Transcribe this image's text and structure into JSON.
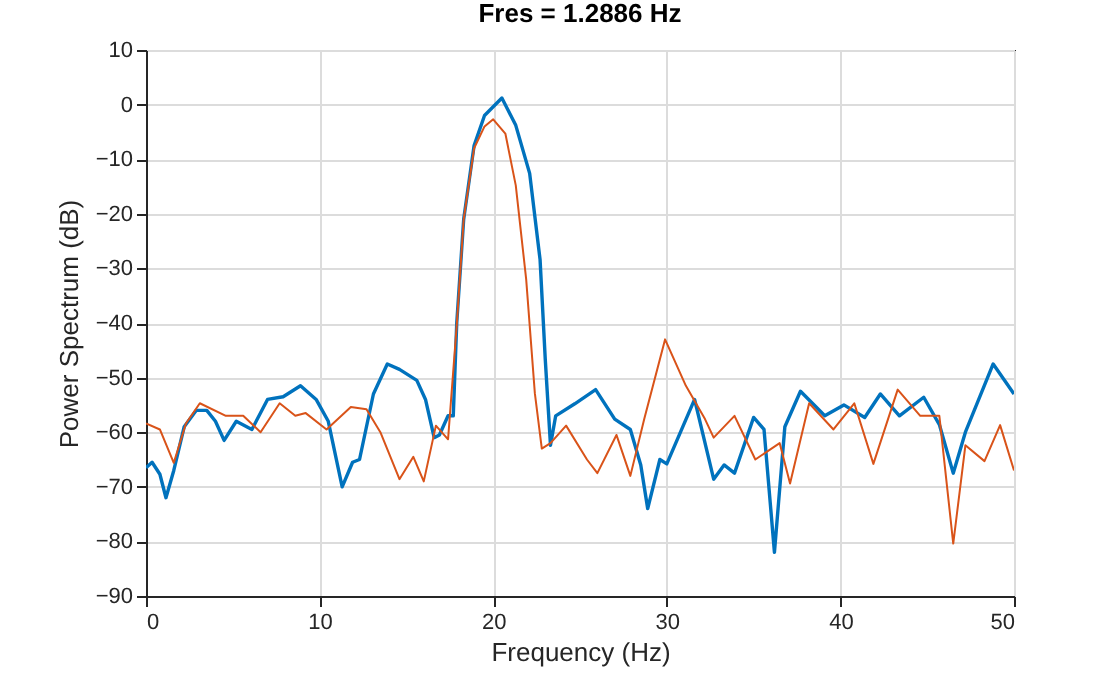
{
  "chart_data": {
    "type": "line",
    "title": "Fres = 1.2886 Hz",
    "xlabel": "Frequency (Hz)",
    "ylabel": "Power Spectrum (dB)",
    "xlim": [
      0,
      50
    ],
    "ylim": [
      -90,
      10
    ],
    "xticks": [
      0,
      10,
      20,
      30,
      40,
      50
    ],
    "yticks": [
      -90,
      -80,
      -70,
      -60,
      -50,
      -40,
      -30,
      -20,
      -10,
      0,
      10
    ],
    "grid": true,
    "line_style": "solid",
    "series": [
      {
        "color": "#0072bd",
        "x": [
          0,
          0.35,
          0.8,
          1.15,
          1.6,
          2.2,
          2.9,
          3.5,
          4.0,
          4.5,
          5.2,
          6.1,
          7.0,
          7.9,
          8.9,
          9.8,
          10.5,
          11.3,
          11.9,
          12.3,
          13.1,
          13.9,
          14.6,
          15.6,
          16.1,
          16.6,
          16.9,
          17.4,
          17.7,
          17.9,
          18.3,
          18.9,
          19.5,
          20.5,
          21.3,
          22.1,
          22.7,
          23.0,
          23.3,
          23.6,
          24.7,
          25.9,
          27.0,
          27.9,
          28.5,
          28.9,
          29.6,
          30.0,
          31.6,
          32.7,
          33.3,
          33.9,
          35.0,
          35.6,
          36.2,
          36.8,
          37.7,
          39.1,
          40.2,
          41.4,
          42.3,
          43.4,
          44.8,
          45.7,
          46.5,
          47.2,
          48.8,
          50
        ],
        "values": [
          -66.5,
          -65.5,
          -67.7,
          -72,
          -67,
          -59,
          -56,
          -56,
          -58,
          -61.5,
          -58,
          -59.5,
          -54,
          -53.5,
          -51.5,
          -54,
          -58,
          -70,
          -65.5,
          -65,
          -53,
          -47.5,
          -48.5,
          -50.5,
          -54,
          -61,
          -60.5,
          -57,
          -57,
          -40,
          -21,
          -7.5,
          -2,
          1.2,
          -3.8,
          -12.6,
          -28.4,
          -46.7,
          -62.4,
          -57,
          -54.8,
          -52.2,
          -57.6,
          -59.5,
          -66,
          -74,
          -65,
          -65.8,
          -54,
          -68.6,
          -66,
          -67.5,
          -57.3,
          -59.5,
          -82,
          -59,
          -52.5,
          -57,
          -55,
          -57.3,
          -53,
          -57,
          -53.6,
          -58.6,
          -67.5,
          -60,
          -47.5,
          -53
        ]
      },
      {
        "color": "#d95319",
        "x": [
          0,
          0.8,
          1.6,
          2.3,
          3.1,
          4.6,
          5.6,
          6.6,
          7.7,
          8.6,
          9.2,
          10.4,
          11.8,
          12.7,
          13.5,
          14.6,
          15.4,
          16.0,
          16.7,
          17.4,
          17.9,
          18.3,
          18.9,
          19.5,
          20.0,
          20.7,
          21.3,
          21.9,
          22.4,
          22.8,
          23.3,
          24.2,
          25.4,
          26.0,
          27.1,
          27.9,
          28.7,
          29.9,
          31.1,
          32.2,
          32.7,
          33.9,
          35.1,
          36.5,
          37.1,
          38.2,
          39.6,
          40.8,
          41.9,
          43.3,
          44.6,
          45.7,
          46.5,
          47.2,
          48.3,
          49.2,
          50
        ],
        "values": [
          -58.4,
          -59.5,
          -65.6,
          -58.4,
          -54.7,
          -57,
          -57,
          -60,
          -54.7,
          -57,
          -56.5,
          -59.5,
          -55.4,
          -55.8,
          -60,
          -68.6,
          -64.5,
          -69,
          -58.8,
          -61.3,
          -40.4,
          -21,
          -8,
          -4,
          -2.7,
          -5.3,
          -14.8,
          -32,
          -52.9,
          -63,
          -62,
          -58.8,
          -65,
          -67.5,
          -60.5,
          -68,
          -57.6,
          -43,
          -51.5,
          -57.6,
          -61,
          -57,
          -65,
          -62,
          -69.4,
          -54.7,
          -59.5,
          -54.7,
          -65.8,
          -52.2,
          -57,
          -57,
          -80.4,
          -62.4,
          -65.3,
          -58.7,
          -67
        ]
      }
    ]
  }
}
